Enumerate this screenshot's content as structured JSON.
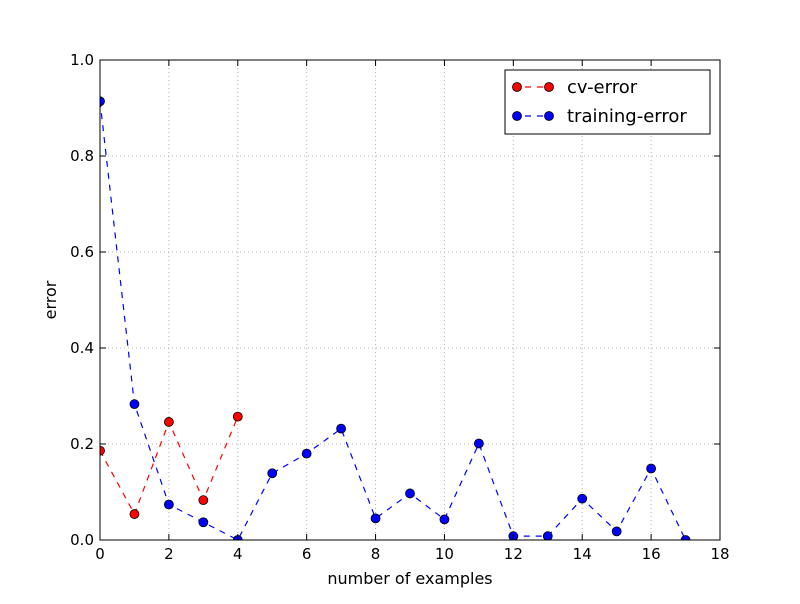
{
  "chart_data": {
    "type": "line",
    "title": "",
    "xlabel": "number of examples",
    "ylabel": "error",
    "xlim": [
      0,
      18
    ],
    "ylim": [
      0.0,
      1.0
    ],
    "x_ticks": [
      0,
      2,
      4,
      6,
      8,
      10,
      12,
      14,
      16,
      18
    ],
    "x_tick_labels": [
      "0",
      "2",
      "4",
      "6",
      "8",
      "10",
      "12",
      "14",
      "16",
      "18"
    ],
    "y_ticks": [
      0.0,
      0.2,
      0.4,
      0.6,
      0.8,
      1.0
    ],
    "y_tick_labels": [
      "0.0",
      "0.2",
      "0.4",
      "0.6",
      "0.8",
      "1.0"
    ],
    "grid": true,
    "legend_position": "top-right",
    "series": [
      {
        "name": "cv-error",
        "color": "#ff0000",
        "line_style": "dashed",
        "marker": "circle",
        "x": [
          0,
          1,
          2,
          3,
          4
        ],
        "values": [
          0.186,
          0.054,
          0.246,
          0.083,
          0.257
        ]
      },
      {
        "name": "training-error",
        "color": "#0000ff",
        "line_style": "dashed",
        "marker": "circle",
        "x": [
          0,
          1,
          2,
          3,
          4,
          5,
          6,
          7,
          8,
          9,
          10,
          11,
          12,
          13,
          14,
          15,
          16,
          17
        ],
        "values": [
          0.914,
          0.283,
          0.074,
          0.037,
          0.0,
          0.139,
          0.18,
          0.232,
          0.045,
          0.097,
          0.043,
          0.201,
          0.008,
          0.008,
          0.086,
          0.018,
          0.149,
          0.0
        ]
      }
    ]
  }
}
